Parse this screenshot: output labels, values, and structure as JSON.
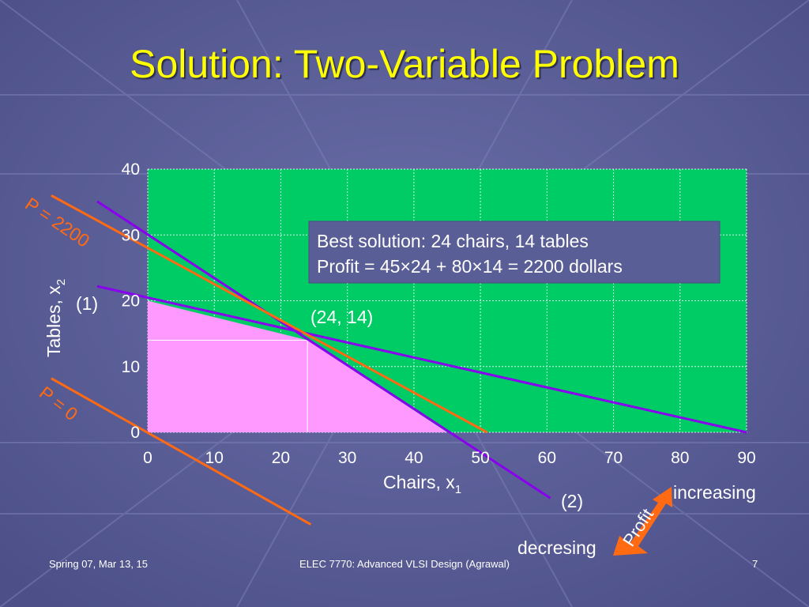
{
  "title": "Solution: Two-Variable Problem",
  "footer": {
    "left": "Spring 07, Mar 13, 15",
    "center": "ELEC 7770: Advanced VLSI Design (Agrawal)",
    "right": "7"
  },
  "colors": {
    "plot_background": "#00cc66",
    "feasible_region": "#ff99ff",
    "constraint_lines": "#8800ee",
    "profit_lines": "#ff6a13",
    "title": "#ffff00",
    "info_box": "#5a5e96"
  },
  "chart_data": {
    "type": "line",
    "xlim": [
      0,
      90
    ],
    "ylim": [
      0,
      40
    ],
    "x_ticks": [
      "0",
      "10",
      "20",
      "30",
      "40",
      "50",
      "60",
      "70",
      "80",
      "90"
    ],
    "y_ticks": [
      "0",
      "10",
      "20",
      "30",
      "40"
    ],
    "xlabel": "Chairs, x",
    "xlabel_sub": "1",
    "ylabel": "Tables, x",
    "ylabel_sub": "2",
    "grid": true,
    "feasible_region": [
      [
        0,
        0
      ],
      [
        0,
        20
      ],
      [
        24,
        14
      ],
      [
        45,
        0
      ]
    ],
    "constraint_lines": [
      {
        "label": "(1)",
        "points": [
          [
            -7.6,
            22.2
          ],
          [
            90,
            0
          ]
        ]
      },
      {
        "label": "(2)",
        "points": [
          [
            -7.6,
            35.1
          ],
          [
            60.5,
            -10
          ]
        ]
      }
    ],
    "profit_lines": [
      {
        "label": "P = 2200",
        "points": [
          [
            -14.5,
            36
          ],
          [
            51,
            0
          ]
        ]
      },
      {
        "label": "P = 0",
        "points": [
          [
            -14.5,
            8.2
          ],
          [
            24.5,
            -14
          ]
        ]
      }
    ],
    "optimum": {
      "x": 24,
      "y": 14,
      "label": "(24, 14)"
    },
    "info_box": [
      "Best solution: 24 chairs, 14 tables",
      "Profit = 45×24 + 80×14 = 2200 dollars"
    ],
    "profit_arrow": {
      "label": "Profit",
      "increasing": "increasing",
      "decreasing": "decresing"
    }
  }
}
